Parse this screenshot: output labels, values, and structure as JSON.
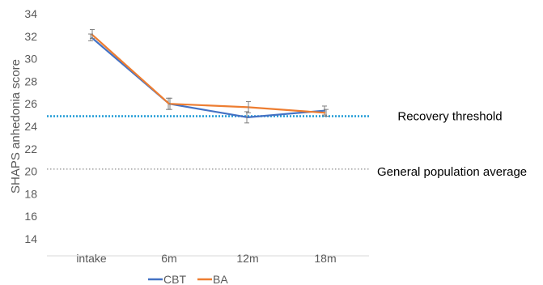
{
  "chart_data": {
    "type": "line",
    "ylabel": "SHAPS anhedonia score",
    "xlabel": "",
    "categories": [
      "intake",
      "6m",
      "12m",
      "18m"
    ],
    "ylim": [
      14,
      34
    ],
    "yticks": [
      14,
      16,
      18,
      20,
      22,
      24,
      26,
      28,
      30,
      32,
      34
    ],
    "grid": false,
    "legend_position": "bottom",
    "series": [
      {
        "name": "CBT",
        "values": [
          31.9,
          26.0,
          24.8,
          25.4
        ],
        "error": [
          0.3,
          0.5,
          0.5,
          0.4
        ],
        "color": "#4472c4"
      },
      {
        "name": "BA",
        "values": [
          32.2,
          26.0,
          25.7,
          25.2
        ],
        "error": [
          0.4,
          0.5,
          0.5,
          0.3
        ],
        "color": "#ed7d31"
      }
    ],
    "reference_lines": [
      {
        "label": "Recovery threshold",
        "value": 24.9,
        "color": "#1f9ad6",
        "style": "dotted"
      },
      {
        "label": "General population average",
        "value": 20.2,
        "color": "#a6a6a6",
        "style": "dotted"
      }
    ]
  }
}
